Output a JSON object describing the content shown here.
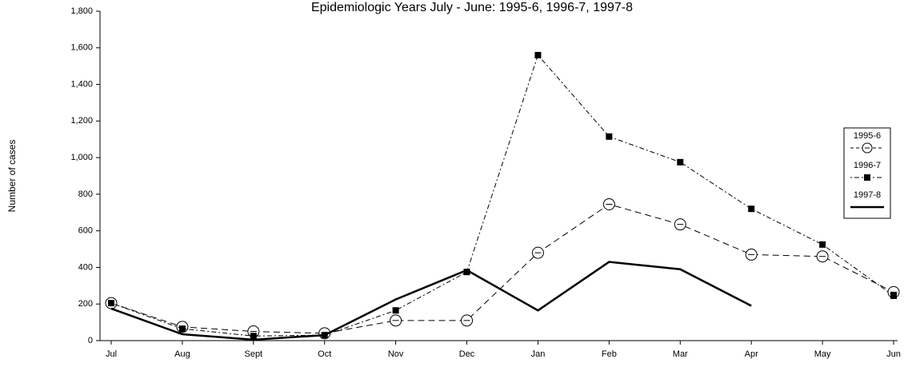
{
  "chart_data": {
    "type": "line",
    "title": "Epidemiologic Years July - June: 1995-6, 1996-7, 1997-8",
    "y_label": "Number of cases",
    "categories": [
      "Jul",
      "Aug",
      "Sept",
      "Oct",
      "Nov",
      "Dec",
      "Jan",
      "Feb",
      "Mar",
      "Apr",
      "May",
      "Jun"
    ],
    "series": [
      {
        "name": "1995-6",
        "color": "#000000",
        "dash": "dashed",
        "marker": "circle",
        "values": [
          205,
          75,
          50,
          40,
          110,
          110,
          480,
          745,
          635,
          470,
          460,
          265
        ]
      },
      {
        "name": "1996-7",
        "color": "#000000",
        "dash": "dotted",
        "marker": "square",
        "values": [
          205,
          65,
          25,
          30,
          165,
          375,
          1560,
          1115,
          975,
          720,
          525,
          245
        ]
      },
      {
        "name": "1997-8",
        "color": "#000000",
        "dash": "solid",
        "marker": "none",
        "values": [
          175,
          35,
          5,
          30,
          225,
          385,
          165,
          430,
          390,
          190,
          null,
          null
        ]
      }
    ],
    "ylim": [
      0,
      1800
    ],
    "yticks": [
      0,
      200,
      400,
      600,
      800,
      {
        "value": 1000,
        "label": "1,000"
      },
      {
        "value": 1200,
        "label": "1,200"
      },
      {
        "value": 1400,
        "label": "1,400"
      },
      {
        "value": 1600,
        "label": "1,600"
      },
      {
        "value": 1800,
        "label": "1,800"
      }
    ],
    "legend": "right",
    "grid": false
  }
}
